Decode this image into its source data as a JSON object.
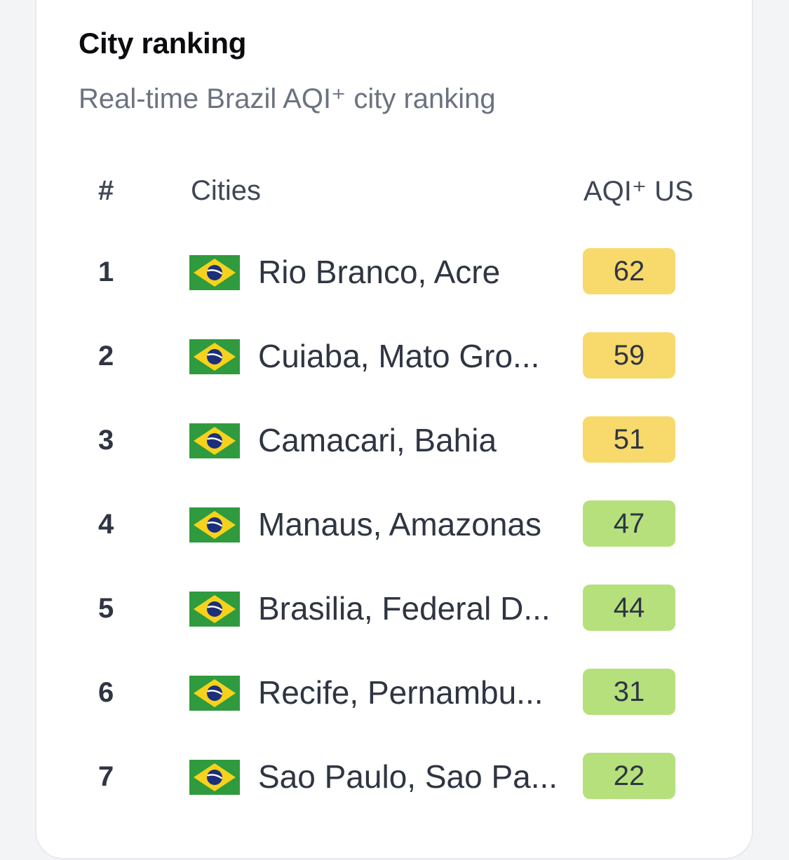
{
  "header": {
    "title": "City ranking",
    "subtitle": "Real-time Brazil AQI⁺ city ranking"
  },
  "columns": {
    "rank": "#",
    "city": "Cities",
    "aqi": "AQI⁺ US"
  },
  "colors": {
    "moderate": "#f8d96b",
    "good": "#b5e07c"
  },
  "rows": [
    {
      "rank": "1",
      "flag_icon": "brazil-flag-icon",
      "city": "Rio Branco, Acre",
      "aqi": "62",
      "level": "moderate"
    },
    {
      "rank": "2",
      "flag_icon": "brazil-flag-icon",
      "city": "Cuiaba, Mato Gro...",
      "aqi": "59",
      "level": "moderate"
    },
    {
      "rank": "3",
      "flag_icon": "brazil-flag-icon",
      "city": "Camacari, Bahia",
      "aqi": "51",
      "level": "moderate"
    },
    {
      "rank": "4",
      "flag_icon": "brazil-flag-icon",
      "city": "Manaus, Amazonas",
      "aqi": "47",
      "level": "good"
    },
    {
      "rank": "5",
      "flag_icon": "brazil-flag-icon",
      "city": "Brasilia, Federal D...",
      "aqi": "44",
      "level": "good"
    },
    {
      "rank": "6",
      "flag_icon": "brazil-flag-icon",
      "city": "Recife, Pernambu...",
      "aqi": "31",
      "level": "good"
    },
    {
      "rank": "7",
      "flag_icon": "brazil-flag-icon",
      "city": "Sao Paulo, Sao Pa...",
      "aqi": "22",
      "level": "good"
    }
  ]
}
